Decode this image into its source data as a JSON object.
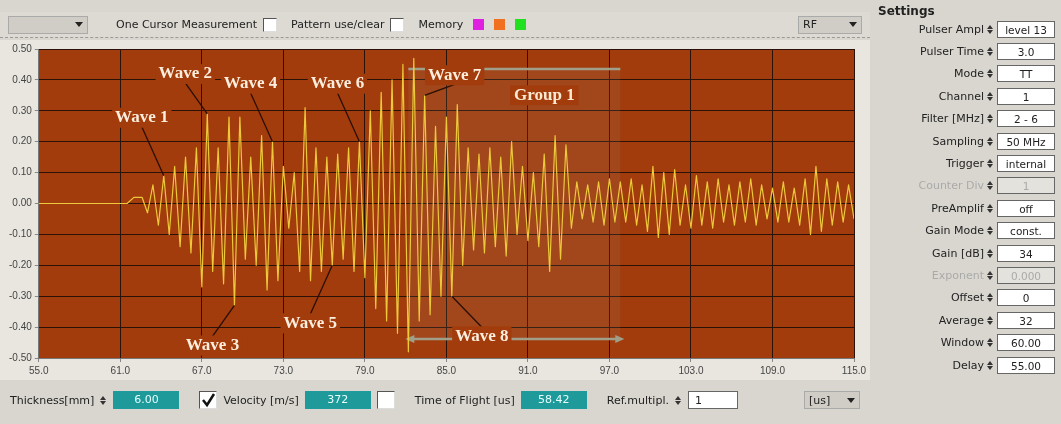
{
  "chart_data": [
    {
      "type": "line",
      "color": "#ecc83a",
      "grid": true,
      "marker": "none",
      "line_style": "solid",
      "xlim": [
        55,
        115
      ],
      "ylim": [
        -0.5,
        0.5
      ],
      "xticks": [
        {
          "value": 55,
          "label": "55.0"
        },
        {
          "value": 61,
          "label": "61.0"
        },
        {
          "value": 67,
          "label": "67.0"
        },
        {
          "value": 73,
          "label": "73.0"
        },
        {
          "value": 79,
          "label": "79.0"
        },
        {
          "value": 85,
          "label": "85.0"
        },
        {
          "value": 91,
          "label": "91.0"
        },
        {
          "value": 97,
          "label": "97.0"
        },
        {
          "value": 103,
          "label": "103.0"
        },
        {
          "value": 109,
          "label": "109.0"
        },
        {
          "value": 115,
          "label": "115.0"
        }
      ],
      "yticks": [
        {
          "value": -0.5,
          "label": "-0.50"
        },
        {
          "value": -0.4,
          "label": "-0.40"
        },
        {
          "value": -0.3,
          "label": "-0.30"
        },
        {
          "value": -0.2,
          "label": "-0.20"
        },
        {
          "value": -0.1,
          "label": "-0.10"
        },
        {
          "value": 0,
          "label": "0.00"
        },
        {
          "value": 0.1,
          "label": "0.10"
        },
        {
          "value": 0.2,
          "label": "0.20"
        },
        {
          "value": 0.3,
          "label": "0.30"
        },
        {
          "value": 0.4,
          "label": "0.40"
        },
        {
          "value": 0.5,
          "label": "0.50"
        }
      ],
      "x": [
        55,
        61.5,
        62.0,
        62.6,
        63.0,
        63.4,
        63.8,
        64.2,
        64.6,
        65.0,
        65.4,
        65.8,
        66.2,
        66.6,
        67.0,
        67.4,
        67.8,
        68.2,
        68.6,
        69.0,
        69.4,
        69.8,
        70.2,
        70.6,
        71.0,
        71.4,
        71.8,
        72.2,
        72.6,
        73.0,
        73.4,
        73.8,
        74.2,
        74.6,
        75.0,
        75.4,
        75.8,
        76.2,
        76.6,
        77.0,
        77.4,
        77.8,
        78.2,
        78.6,
        79.0,
        79.4,
        79.8,
        80.2,
        80.6,
        81.0,
        81.4,
        81.8,
        82.2,
        82.6,
        83.0,
        83.4,
        83.8,
        84.2,
        84.6,
        85.0,
        85.4,
        85.8,
        86.2,
        86.6,
        87.0,
        87.4,
        87.8,
        88.2,
        88.6,
        89.0,
        89.4,
        89.8,
        90.2,
        90.6,
        91.0,
        91.4,
        91.8,
        92.2,
        92.6,
        93.0,
        93.4,
        93.8,
        94.2,
        94.6,
        95.0,
        95.4,
        95.8,
        96.2,
        96.6,
        97.0,
        97.4,
        97.8,
        98.2,
        98.6,
        99.0,
        99.4,
        99.8,
        100.2,
        100.6,
        101.0,
        101.4,
        101.8,
        102.2,
        102.6,
        103.0,
        103.4,
        103.8,
        104.2,
        104.6,
        105.0,
        105.4,
        105.8,
        106.2,
        106.6,
        107.0,
        107.4,
        107.8,
        108.2,
        108.6,
        109.0,
        109.4,
        109.8,
        110.2,
        110.6,
        111.0,
        111.4,
        111.8,
        112.2,
        112.6,
        113.0,
        113.4,
        113.8,
        114.2,
        114.6,
        115.0
      ],
      "values": [
        0,
        0,
        0.02,
        0.02,
        -0.03,
        0.06,
        -0.07,
        0.09,
        -0.1,
        0.12,
        -0.14,
        0.15,
        -0.16,
        0.18,
        -0.27,
        0.29,
        -0.22,
        0.18,
        -0.26,
        0.28,
        -0.33,
        0.28,
        -0.18,
        0.15,
        -0.2,
        0.22,
        -0.28,
        0.2,
        -0.25,
        0.12,
        -0.08,
        0.1,
        -0.22,
        0.31,
        -0.25,
        0.18,
        -0.22,
        0.15,
        -0.2,
        0.16,
        -0.18,
        0.18,
        -0.22,
        0.2,
        -0.24,
        0.3,
        -0.34,
        0.36,
        -0.38,
        0.4,
        -0.42,
        0.45,
        -0.48,
        0.47,
        -0.38,
        0.35,
        -0.36,
        0.25,
        -0.3,
        0.28,
        -0.3,
        0.32,
        -0.2,
        0.18,
        -0.15,
        0.16,
        -0.16,
        0.18,
        -0.14,
        0.15,
        -0.17,
        0.2,
        -0.1,
        0.12,
        -0.12,
        0.1,
        -0.14,
        0.16,
        -0.22,
        0.22,
        -0.18,
        0.19,
        -0.08,
        0.07,
        -0.05,
        0.06,
        -0.06,
        0.07,
        -0.07,
        0.08,
        -0.06,
        0.07,
        -0.06,
        0.08,
        -0.07,
        0.06,
        -0.09,
        0.12,
        -0.11,
        0.1,
        -0.1,
        0.11,
        -0.07,
        0.06,
        -0.08,
        0.09,
        -0.07,
        0.07,
        -0.08,
        0.08,
        -0.06,
        0.06,
        -0.07,
        0.07,
        -0.06,
        0.08,
        -0.07,
        0.06,
        -0.05,
        0.05,
        -0.06,
        0.07,
        -0.06,
        0.05,
        -0.07,
        0.08,
        -0.1,
        0.12,
        -0.09,
        0.08,
        -0.07,
        0.07,
        -0.06,
        0.06,
        -0.05
      ],
      "bands": [
        {
          "axis": "x",
          "from": 82.2,
          "to": 97.8,
          "label": "Group 1",
          "color": "#a0a08a"
        }
      ],
      "annotations": [
        {
          "text": "Wave 1",
          "x": 64.2,
          "y": 0.09
        },
        {
          "text": "Wave 2",
          "x": 67.4,
          "y": 0.29
        },
        {
          "text": "Wave 3",
          "x": 69.4,
          "y": -0.33
        },
        {
          "text": "Wave 4",
          "x": 72.2,
          "y": 0.2
        },
        {
          "text": "Wave 5",
          "x": 76.6,
          "y": -0.2
        },
        {
          "text": "Wave 6",
          "x": 78.6,
          "y": 0.2
        },
        {
          "text": "Wave 7",
          "x": 83.4,
          "y": 0.35
        },
        {
          "text": "Wave 8",
          "x": 85.4,
          "y": -0.3
        }
      ]
    },
    {
      "type": "other",
      "annotations": [
        "One Cursor Measurement",
        "Pattern use/clear",
        "Memory",
        "RF"
      ]
    },
    {
      "type": "other",
      "annotations": [
        "Thickness[mm]",
        "6.00",
        "Velocity [m/s]",
        "372",
        "Time of Flight [us]",
        "58.42",
        "Ref.multipl.",
        "1",
        "[us]"
      ]
    },
    {
      "type": "other",
      "title": "Settings",
      "annotations": [
        "Pulser Ampl",
        "level 13",
        "Pulser Time",
        "3.0",
        "Mode",
        "TT",
        "Channel",
        "1",
        "Filter [MHz]",
        "2 - 6",
        "Sampling",
        "50 MHz",
        "Trigger",
        "internal",
        "Counter Div",
        "1",
        "PreAmplif",
        "off",
        "Gain Mode",
        "const.",
        "Gain [dB]",
        "34",
        "Exponent",
        "0.000",
        "Offset",
        "0",
        "Average",
        "32",
        "Window",
        "60.00",
        "Delay",
        "55.00"
      ]
    }
  ]
}
